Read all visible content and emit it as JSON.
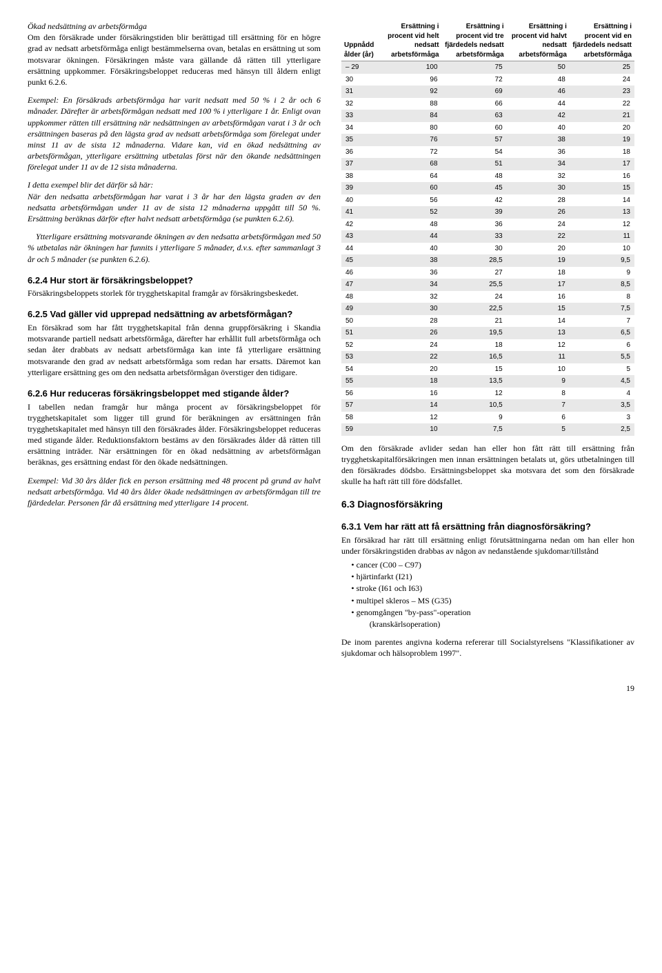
{
  "left": {
    "title1": "Ökad nedsättning av arbetsförmåga",
    "p1": "Om den försäkrade under försäkringstiden blir berättigad till ersättning för en högre grad av nedsatt arbetsförmåga enligt bestämmelserna ovan, betalas en ersättning ut som motsvarar ökningen. Försäkringen måste vara gällande då rätten till ytterligare ersättning uppkommer. Försäkringsbeloppet reduceras med hänsyn till åldern enligt punkt 6.2.6.",
    "p2": "Exempel: En försäkrads arbetsförmåga har varit nedsatt med 50 % i 2 år och 6 månader. Därefter är arbetsförmågan nedsatt med 100 % i ytterligare 1 år. Enligt ovan uppkommer rätten till ersättning när nedsättningen av arbetsförmågan varat i 3 år och ersättningen baseras på den lägsta grad av nedsatt arbetsförmåga som förelegat under minst 11 av de sista 12 månaderna. Vidare kan, vid en ökad nedsättning av arbetsförmågan, ytterligare ersättning utbetalas först när den ökande nedsättningen förelegat under 11 av de 12 sista månaderna.",
    "p3a": "I detta exempel blir det därför så här:",
    "p3b": "När den nedsatta arbetsförmågan har varat i 3 år har den lägsta graden av den nedsatta arbetsförmågan under 11 av de sista 12 månaderna uppgått till 50 %. Ersättning beräknas därför efter halvt nedsatt arbetsförmåga (se punkten 6.2.6).",
    "p3c": "Ytterligare ersättning motsvarande ökningen av den nedsatta arbetsförmågan med 50 % utbetalas när ökningen har funnits i ytterligare 5 månader, d.v.s. efter sammanlagt 3 år och 5 månader (se punkten 6.2.6).",
    "h624": "6.2.4 Hur stort är försäkringsbeloppet?",
    "p624": "Försäkringsbeloppets storlek för trygghetskapital framgår av försäkringsbeskedet.",
    "h625": "6.2.5 Vad gäller vid upprepad nedsättning av arbetsförmågan?",
    "p625": "En försäkrad som har fått trygghetskapital från denna gruppförsäkring i Skandia motsvarande partiell nedsatt arbetsförmåga, därefter har erhållit full arbetsförmåga och sedan åter drabbats av nedsatt arbetsförmåga kan inte få ytterligare ersättning motsvarande den grad av nedsatt arbetsförmåga som redan har ersatts. Däremot kan ytterligare ersättning ges om den nedsatta arbetsförmågan överstiger den tidigare.",
    "h626": "6.2.6 Hur reduceras försäkringsbeloppet med stigande ålder?",
    "p626": "I tabellen nedan framgår hur många procent av försäkringsbeloppet för trygghetskapitalet som ligger till grund för beräkningen av ersättningen från trygghetskapitalet med hänsyn till den försäkrades ålder. Försäkringsbeloppet reduceras med stigande ålder. Reduktionsfaktorn bestäms av den försäkrades ålder då rätten till ersättning inträder. När ersättningen för en ökad nedsättning av arbetsförmågan beräknas, ges ersättning endast för den ökade nedsättningen.",
    "p626ex": "Exempel: Vid 30 års ålder fick en person ersättning med 48 procent på grund av halvt nedsatt arbetsförmåga. Vid 40 års ålder ökade nedsättningen av arbetsförmågan till tre fjärdedelar. Personen får då ersättning med ytterligare 14 procent."
  },
  "table": {
    "headers": [
      "Uppnådd ålder (år)",
      "Ersättning i procent vid helt nedsatt arbetsförmåga",
      "Ersättning i procent vid tre fjärdedels nedsatt arbetsförmåga",
      "Ersättning i procent vid halvt nedsatt arbetsförmåga",
      "Ersättning i procent vid en fjärdedels nedsatt arbetsförmåga"
    ],
    "rows": [
      [
        "– 29",
        "100",
        "75",
        "50",
        "25"
      ],
      [
        "30",
        "96",
        "72",
        "48",
        "24"
      ],
      [
        "31",
        "92",
        "69",
        "46",
        "23"
      ],
      [
        "32",
        "88",
        "66",
        "44",
        "22"
      ],
      [
        "33",
        "84",
        "63",
        "42",
        "21"
      ],
      [
        "34",
        "80",
        "60",
        "40",
        "20"
      ],
      [
        "35",
        "76",
        "57",
        "38",
        "19"
      ],
      [
        "36",
        "72",
        "54",
        "36",
        "18"
      ],
      [
        "37",
        "68",
        "51",
        "34",
        "17"
      ],
      [
        "38",
        "64",
        "48",
        "32",
        "16"
      ],
      [
        "39",
        "60",
        "45",
        "30",
        "15"
      ],
      [
        "40",
        "56",
        "42",
        "28",
        "14"
      ],
      [
        "41",
        "52",
        "39",
        "26",
        "13"
      ],
      [
        "42",
        "48",
        "36",
        "24",
        "12"
      ],
      [
        "43",
        "44",
        "33",
        "22",
        "11"
      ],
      [
        "44",
        "40",
        "30",
        "20",
        "10"
      ],
      [
        "45",
        "38",
        "28,5",
        "19",
        "9,5"
      ],
      [
        "46",
        "36",
        "27",
        "18",
        "9"
      ],
      [
        "47",
        "34",
        "25,5",
        "17",
        "8,5"
      ],
      [
        "48",
        "32",
        "24",
        "16",
        "8"
      ],
      [
        "49",
        "30",
        "22,5",
        "15",
        "7,5"
      ],
      [
        "50",
        "28",
        "21",
        "14",
        "7"
      ],
      [
        "51",
        "26",
        "19,5",
        "13",
        "6,5"
      ],
      [
        "52",
        "24",
        "18",
        "12",
        "6"
      ],
      [
        "53",
        "22",
        "16,5",
        "11",
        "5,5"
      ],
      [
        "54",
        "20",
        "15",
        "10",
        "5"
      ],
      [
        "55",
        "18",
        "13,5",
        "9",
        "4,5"
      ],
      [
        "56",
        "16",
        "12",
        "8",
        "4"
      ],
      [
        "57",
        "14",
        "10,5",
        "7",
        "3,5"
      ],
      [
        "58",
        "12",
        "9",
        "6",
        "3"
      ],
      [
        "59",
        "10",
        "7,5",
        "5",
        "2,5"
      ]
    ]
  },
  "right": {
    "pAfterTable": "Om den försäkrade avlider sedan han eller hon fått rätt till ersättning från trygghetskapitalförsäkringen men innan ersättningen betalats ut, görs utbetalningen till den försäkrades dödsbo. Ersättningsbeloppet ska motsvara det som den försäkrade skulle ha haft rätt till före dödsfallet.",
    "h63": "6.3 Diagnosförsäkring",
    "h631": "6.3.1 Vem har rätt att få ersättning från diagnosförsäkring?",
    "p631": "En försäkrad har rätt till ersättning enligt förutsättningarna nedan om han eller hon under försäkringstiden drabbas av någon av nedanstående sjukdomar/tillstånd",
    "bullets": [
      "cancer (C00 – C97)",
      "hjärtinfarkt (I21)",
      "stroke (I61 och I63)",
      "multipel skleros – MS (G35)",
      "genomgången \"by-pass\"-operation (kranskärlsoperation)"
    ],
    "pRef": "De inom parentes angivna koderna refererar till Socialstyrelsens \"Klassifikationer av sjukdomar och hälsoproblem 1997\"."
  },
  "pageNum": "19"
}
